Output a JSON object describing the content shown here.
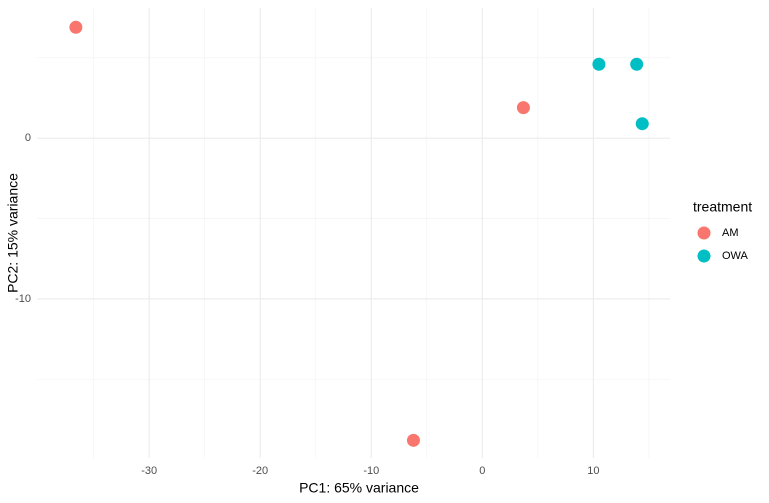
{
  "chart_data": {
    "type": "scatter",
    "xlabel": "PC1: 65% variance",
    "ylabel": "PC2: 15% variance",
    "legend_title": "treatment",
    "legend_position": "right",
    "grid": true,
    "xlim": [
      -40.1,
      16.9
    ],
    "ylim": [
      -19.9,
      8.1
    ],
    "xticks": [
      -30,
      -20,
      -10,
      0,
      10
    ],
    "yticks": [
      -10,
      0
    ],
    "x_minor_grid": [
      -35,
      -25,
      -15,
      -5,
      5,
      15
    ],
    "y_minor_grid": [
      -15,
      -5,
      5
    ],
    "series": [
      {
        "name": "AM",
        "color": "#F8766D",
        "x": [
          -36.6,
          3.7,
          -6.2
        ],
        "values": [
          6.9,
          1.9,
          -18.8
        ]
      },
      {
        "name": "OWA",
        "color": "#00BFC4",
        "x": [
          10.5,
          13.9,
          14.4
        ],
        "values": [
          4.6,
          4.6,
          0.9
        ]
      }
    ]
  }
}
